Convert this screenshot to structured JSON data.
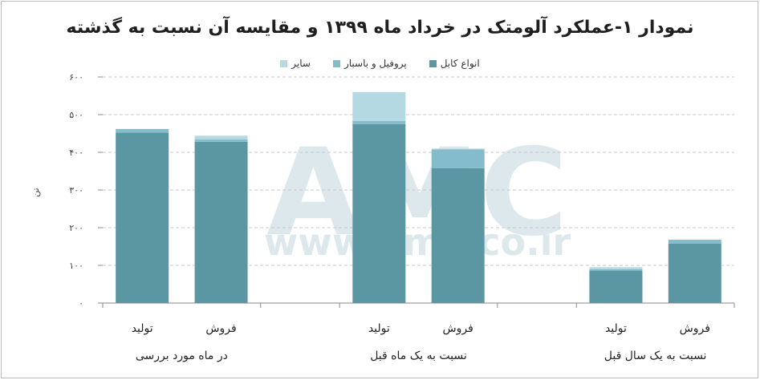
{
  "chart_data": {
    "type": "bar",
    "stacked": true,
    "title": "نمودار ۱-عملکرد آلومتک در خرداد ماه ۱۳۹۹ و مقایسه آن نسبت به گذشته",
    "ylabel": "تن",
    "ylim": [
      0,
      600
    ],
    "yticks": [
      "۰",
      "۱۰۰",
      "۲۰۰",
      "۳۰۰",
      "۴۰۰",
      "۵۰۰",
      "۶۰۰"
    ],
    "grid": "horizontal dashed",
    "legend_position": "top",
    "groups": [
      "در ماه مورد بررسی",
      "نسبت به یک ماه قبل",
      "نسبت به یک سال قبل"
    ],
    "categories": [
      "تولید",
      "فروش",
      "تولید",
      "فروش",
      "تولید",
      "فروش"
    ],
    "series": [
      {
        "name": "انواع کابل",
        "color": "#5b96a3",
        "values": [
          452,
          428,
          475,
          358,
          86,
          158
        ]
      },
      {
        "name": "پروفیل و باسبار",
        "color": "#84bccb",
        "values": [
          10,
          6,
          8,
          50,
          4,
          10
        ]
      },
      {
        "name": "سایر",
        "color": "#b4d9e3",
        "values": [
          0,
          10,
          77,
          2,
          5,
          0
        ]
      }
    ],
    "watermark": {
      "logo_text": "AMC",
      "url_text": "www.amc-co.ir"
    }
  }
}
